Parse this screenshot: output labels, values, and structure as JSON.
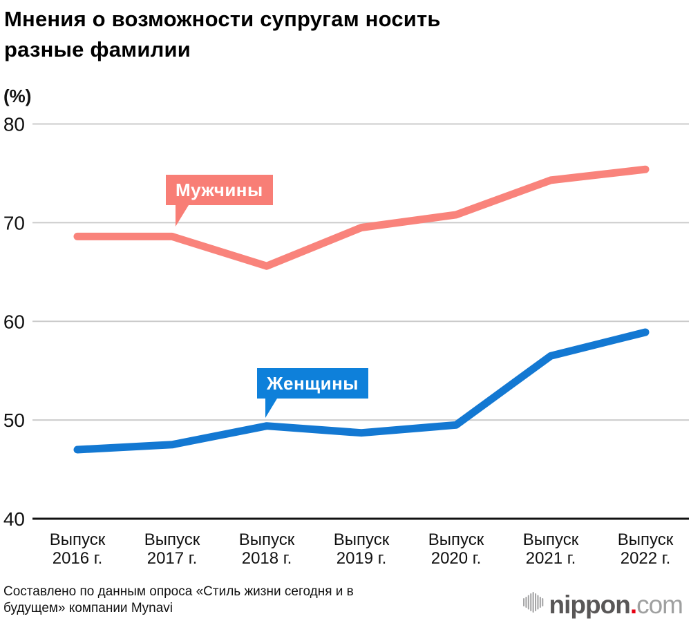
{
  "title": "Мнения о возможности супругам носить разные фамилии",
  "title_lines": [
    "Мнения о возможности супругам носить",
    "разные фамилии"
  ],
  "unit_label": "(%)",
  "source_lines": [
    "Составлено по данным опроса «Стиль жизни сегодня и в",
    "будущем» компании Mynavi"
  ],
  "logo": {
    "name": "nippon.com",
    "text_main": "nippon",
    "text_dot": ".",
    "text_suffix": "com",
    "dot_color": "#e60012",
    "main_color": "#595757",
    "suffix_color": "#9fa0a0",
    "bars_color": "#a5a5a6"
  },
  "colors": {
    "men_line": "#f9837b",
    "men_box": "#f87e76",
    "women_line": "#1378d2",
    "women_box": "#0e80da",
    "gridline": "#cbcbcb",
    "axis": "#111111",
    "tick_text": "#111111"
  },
  "chart_data": {
    "type": "line",
    "title": "Мнения о возможности супругам носить разные фамилии",
    "unit": "%",
    "xlabel": "",
    "ylabel": "(%)",
    "categories": [
      "Выпуск 2016 г.",
      "Выпуск 2017 г.",
      "Выпуск 2018 г.",
      "Выпуск 2019 г.",
      "Выпуск 2020 г.",
      "Выпуск 2021 г.",
      "Выпуск 2022 г."
    ],
    "series": [
      {
        "name": "Мужчины",
        "color": "#f9837b",
        "values": [
          68.6,
          68.6,
          65.6,
          69.5,
          70.8,
          74.3,
          75.4
        ]
      },
      {
        "name": "Женщины",
        "color": "#1378d2",
        "values": [
          47.0,
          47.5,
          49.4,
          48.7,
          49.5,
          56.5,
          58.9
        ]
      }
    ],
    "ylim": [
      40,
      80
    ],
    "yticks": [
      80,
      70,
      60,
      50,
      40
    ],
    "grid": true,
    "legend_position": "inline-callouts"
  }
}
